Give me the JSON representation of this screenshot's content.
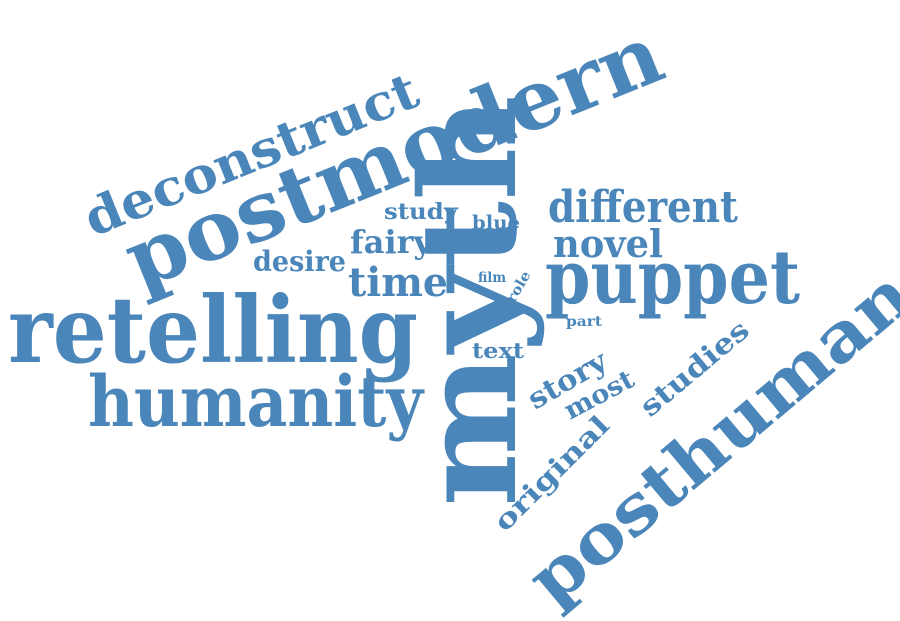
{
  "colors": {
    "word": "#4a86b9",
    "background": "#ffffff"
  },
  "words": {
    "myth": "myth",
    "retelling": "retelling",
    "postmodern": "postmodern",
    "posthuman": "posthuman",
    "humanity": "humanity",
    "puppet": "puppet",
    "deconstruct": "deconstruct",
    "different": "different",
    "novel": "novel",
    "time": "time",
    "fairy": "fairy",
    "desire": "desire",
    "study": "study",
    "blue": "blue",
    "film": "film",
    "role": "role",
    "part": "part",
    "text": "text",
    "story": "story",
    "most": "most",
    "studies": "studies",
    "original": "original"
  }
}
